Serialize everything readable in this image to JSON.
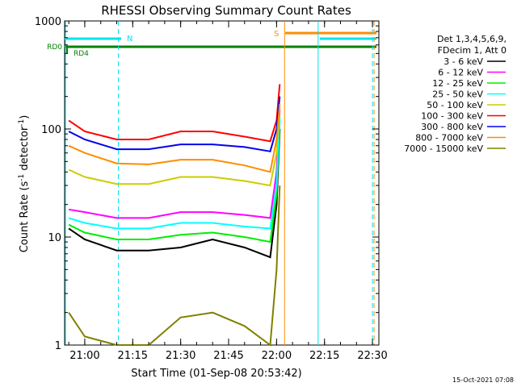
{
  "chart_data": {
    "type": "line",
    "title": "RHESSI Observing Summary Count Rates",
    "xlabel": "Start Time (01-Sep-08 20:53:42)",
    "ylabel_main": "Count Rate (s",
    "ylabel_sup1": "-1",
    "ylabel_mid": " detector",
    "ylabel_sup2": "-1",
    "ylabel_end": ")",
    "yscale": "log",
    "ylim": [
      1,
      1000
    ],
    "xlim": [
      "20:53:42",
      "22:32:00"
    ],
    "x_tick_labels": [
      "21:00",
      "21:15",
      "21:30",
      "21:45",
      "22:00",
      "22:15",
      "22:30"
    ],
    "y_tick_labels": [
      "1",
      "10",
      "100",
      "1000"
    ],
    "legend_header_1": "Det 1,3,4,5,6,9,",
    "legend_header_2": "FDecim 1, Att 0",
    "legend_position": "right",
    "timestamp": "15-Oct-2021 07:08",
    "flag_labels": {
      "rd0": "RD0",
      "rd4": "RD4",
      "n": "N",
      "s": "S"
    },
    "flag_colors": {
      "rd": "#008000",
      "saa": "#ff8c00",
      "night": "#00e5ee"
    },
    "night_markers": [
      "20:53:42",
      "21:10:30",
      "22:13:00",
      "22:30:30"
    ],
    "saa_markers": [
      "22:02:30",
      "22:30:30"
    ],
    "series": [
      {
        "name": "3 - 6 keV",
        "color": "#000000",
        "x": [
          "20:55",
          "21:00",
          "21:10",
          "21:20",
          "21:30",
          "21:40",
          "21:50",
          "21:58",
          "22:00",
          "22:01"
        ],
        "values": [
          12,
          9.5,
          7.5,
          7.5,
          8,
          9.5,
          8,
          6.5,
          20,
          100
        ]
      },
      {
        "name": "6 - 12 keV",
        "color": "#ff00ff",
        "x": [
          "20:55",
          "21:00",
          "21:10",
          "21:20",
          "21:30",
          "21:40",
          "21:50",
          "21:58",
          "22:00",
          "22:01"
        ],
        "values": [
          18,
          17,
          15,
          15,
          17,
          17,
          16,
          15,
          40,
          150
        ]
      },
      {
        "name": "12 - 25 keV",
        "color": "#00ee00",
        "x": [
          "20:55",
          "21:00",
          "21:10",
          "21:20",
          "21:30",
          "21:40",
          "21:50",
          "21:58",
          "22:00",
          "22:01"
        ],
        "values": [
          13,
          11,
          9.5,
          9.5,
          10.5,
          11,
          10,
          9,
          25,
          120
        ]
      },
      {
        "name": "25 - 50 keV",
        "color": "#00ffff",
        "x": [
          "20:55",
          "21:00",
          "21:10",
          "21:20",
          "21:30",
          "21:40",
          "21:50",
          "21:58",
          "22:00",
          "22:01"
        ],
        "values": [
          15,
          13.5,
          12,
          12,
          13.5,
          13.5,
          12.5,
          12,
          30,
          130
        ]
      },
      {
        "name": "50 - 100 keV",
        "color": "#cccc00",
        "x": [
          "20:55",
          "21:00",
          "21:10",
          "21:20",
          "21:30",
          "21:40",
          "21:50",
          "21:58",
          "22:00",
          "22:01"
        ],
        "values": [
          42,
          36,
          31,
          31,
          36,
          36,
          33,
          30,
          60,
          160
        ]
      },
      {
        "name": "100 - 300 keV",
        "color": "#ff0000",
        "x": [
          "20:55",
          "21:00",
          "21:10",
          "21:20",
          "21:30",
          "21:40",
          "21:50",
          "21:58",
          "22:00",
          "22:01"
        ],
        "values": [
          120,
          95,
          80,
          80,
          95,
          95,
          85,
          77,
          120,
          260
        ]
      },
      {
        "name": "300 - 800 keV",
        "color": "#0000ee",
        "x": [
          "20:55",
          "21:00",
          "21:10",
          "21:20",
          "21:30",
          "21:40",
          "21:50",
          "21:58",
          "22:00",
          "22:01"
        ],
        "values": [
          95,
          80,
          65,
          65,
          72,
          72,
          68,
          62,
          100,
          200
        ]
      },
      {
        "name": "800 - 7000 keV",
        "color": "#ff8c00",
        "x": [
          "20:55",
          "21:00",
          "21:10",
          "21:20",
          "21:30",
          "21:40",
          "21:50",
          "21:58",
          "22:00",
          "22:01"
        ],
        "values": [
          70,
          60,
          48,
          47,
          52,
          52,
          46,
          40,
          80,
          170
        ]
      },
      {
        "name": "7000 - 15000 keV",
        "color": "#808000",
        "x": [
          "20:55",
          "21:00",
          "21:10",
          "21:20",
          "21:30",
          "21:40",
          "21:50",
          "21:58",
          "22:00",
          "22:01"
        ],
        "values": [
          2,
          1.2,
          1,
          1,
          1.8,
          2,
          1.5,
          1,
          5,
          30
        ]
      }
    ]
  }
}
